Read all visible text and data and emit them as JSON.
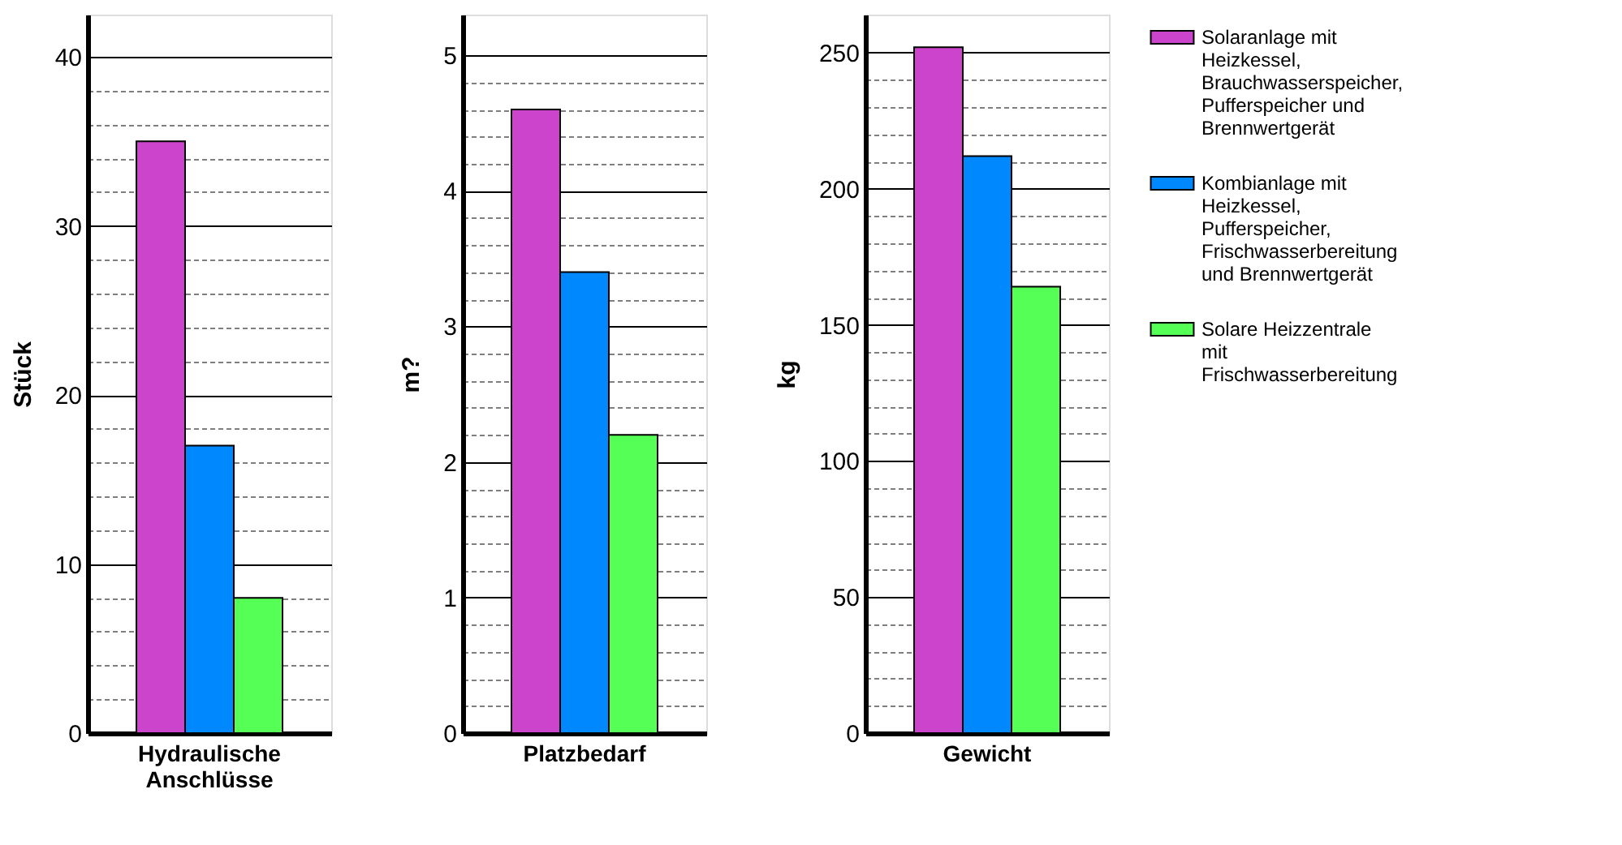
{
  "chart_data": [
    {
      "type": "bar",
      "categories": [
        "Hydraulische Anschlüsse"
      ],
      "ylabel": "Stück",
      "ylim": [
        0,
        42.5
      ],
      "grid": "y",
      "yticks": [
        0,
        {
          "value": 2,
          "label": null
        },
        {
          "value": 4,
          "label": null
        },
        {
          "value": 6,
          "label": null
        },
        {
          "value": 8,
          "label": null
        },
        10,
        {
          "value": 12,
          "label": null
        },
        {
          "value": 14,
          "label": null
        },
        {
          "value": 16,
          "label": null
        },
        {
          "value": 18,
          "label": null
        },
        20,
        {
          "value": 22,
          "label": null
        },
        {
          "value": 24,
          "label": null
        },
        {
          "value": 26,
          "label": null
        },
        {
          "value": 28,
          "label": null
        },
        30,
        {
          "value": 32,
          "label": null
        },
        {
          "value": 34,
          "label": null
        },
        {
          "value": 36,
          "label": null
        },
        {
          "value": 38,
          "label": null
        },
        40
      ],
      "series": [
        {
          "color": "#cc44cc",
          "values": [
            35
          ]
        },
        {
          "color": "#0088ff",
          "values": [
            17
          ]
        },
        {
          "color": "#55ff55",
          "values": [
            8
          ]
        }
      ]
    },
    {
      "type": "bar",
      "categories": [
        "Platzbedarf"
      ],
      "ylabel": "m?",
      "ylim": [
        0,
        5.3
      ],
      "grid": "y",
      "yticks": [
        0,
        {
          "value": 0.2,
          "label": null
        },
        {
          "value": 0.4,
          "label": null
        },
        {
          "value": 0.6,
          "label": null
        },
        {
          "value": 0.8,
          "label": null
        },
        1,
        {
          "value": 1.2,
          "label": null
        },
        {
          "value": 1.4,
          "label": null
        },
        {
          "value": 1.6,
          "label": null
        },
        {
          "value": 1.8,
          "label": null
        },
        2,
        {
          "value": 2.2,
          "label": null
        },
        {
          "value": 2.4,
          "label": null
        },
        {
          "value": 2.6,
          "label": null
        },
        {
          "value": 2.8,
          "label": null
        },
        3,
        {
          "value": 3.2,
          "label": null
        },
        {
          "value": 3.4,
          "label": null
        },
        {
          "value": 3.6,
          "label": null
        },
        {
          "value": 3.8,
          "label": null
        },
        4,
        {
          "value": 4.2,
          "label": null
        },
        {
          "value": 4.4,
          "label": null
        },
        {
          "value": 4.6,
          "label": null
        },
        {
          "value": 4.8,
          "label": null
        },
        5
      ],
      "series": [
        {
          "color": "#cc44cc",
          "values": [
            4.6
          ]
        },
        {
          "color": "#0088ff",
          "values": [
            3.4
          ]
        },
        {
          "color": "#55ff55",
          "values": [
            2.2
          ]
        }
      ]
    },
    {
      "type": "bar",
      "categories": [
        "Gewicht"
      ],
      "ylabel": "kg",
      "ylim": [
        0,
        264
      ],
      "grid": "y",
      "legend": "right",
      "yticks": [
        0,
        {
          "value": 10,
          "label": null
        },
        {
          "value": 20,
          "label": null
        },
        {
          "value": 30,
          "label": null
        },
        {
          "value": 40,
          "label": null
        },
        50,
        {
          "value": 60,
          "label": null
        },
        {
          "value": 70,
          "label": null
        },
        {
          "value": 80,
          "label": null
        },
        {
          "value": 90,
          "label": null
        },
        100,
        {
          "value": 110,
          "label": null
        },
        {
          "value": 120,
          "label": null
        },
        {
          "value": 130,
          "label": null
        },
        {
          "value": 140,
          "label": null
        },
        150,
        {
          "value": 160,
          "label": null
        },
        {
          "value": 170,
          "label": null
        },
        {
          "value": 180,
          "label": null
        },
        {
          "value": 190,
          "label": null
        },
        200,
        {
          "value": 210,
          "label": null
        },
        {
          "value": 220,
          "label": null
        },
        {
          "value": 230,
          "label": null
        },
        {
          "value": 240,
          "label": null
        },
        250
      ],
      "series": [
        {
          "name": "Solaranlage mit Heizkessel, Brauchwasserspeicher, Pufferspeicher und Brennwertgerät",
          "color": "#cc44cc",
          "values": [
            252
          ]
        },
        {
          "name": "Kombianlage mit Heizkessel, Pufferspeicher, Frischwasserbereitung und Brennwertgerät",
          "color": "#0088ff",
          "values": [
            212
          ]
        },
        {
          "name": "Solare Heizzentrale mit Frischwasserbereitung",
          "color": "#55ff55",
          "values": [
            164
          ]
        }
      ]
    }
  ]
}
